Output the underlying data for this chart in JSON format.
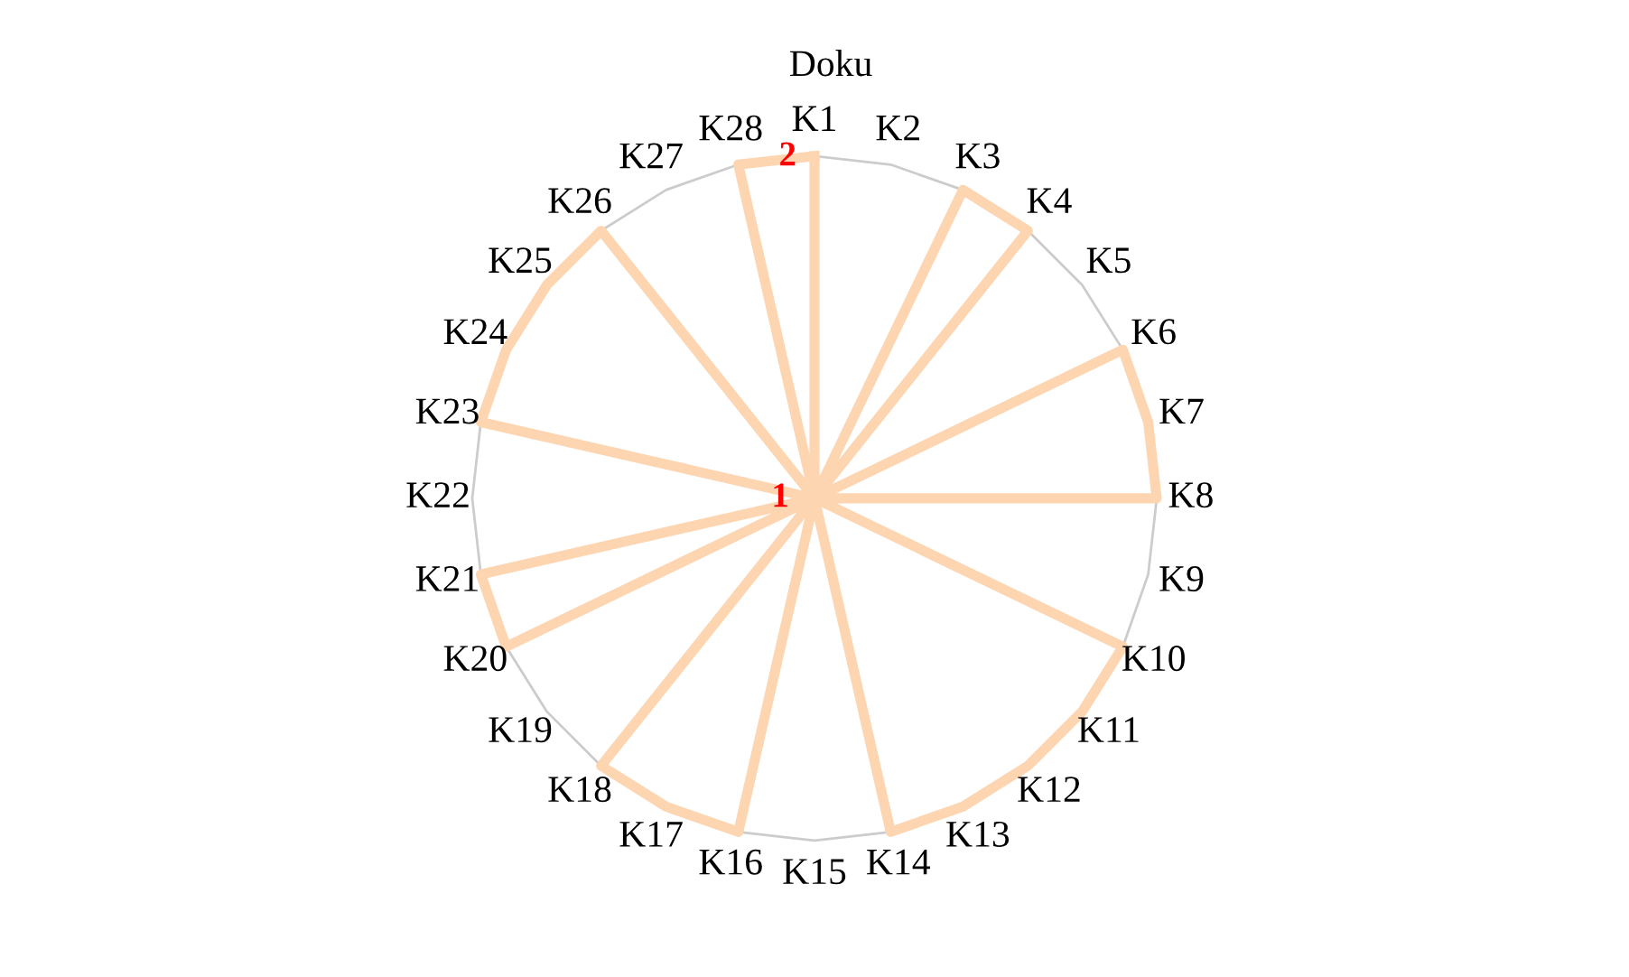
{
  "chart_data": {
    "type": "radar",
    "title": "Doku",
    "categories": [
      "K1",
      "K2",
      "K3",
      "K4",
      "K5",
      "K6",
      "K7",
      "K8",
      "K9",
      "K10",
      "K11",
      "K12",
      "K13",
      "K14",
      "K15",
      "K16",
      "K17",
      "K18",
      "K19",
      "K20",
      "K21",
      "K22",
      "K23",
      "K24",
      "K25",
      "K26",
      "K27",
      "K28"
    ],
    "series": [
      {
        "color": "#fdd5b1",
        "values": [
          2,
          1,
          2,
          2,
          1,
          2,
          2,
          2,
          1,
          2,
          2,
          2,
          2,
          2,
          1,
          2,
          2,
          2,
          1,
          2,
          2,
          1,
          2,
          2,
          2,
          2,
          1,
          2
        ]
      }
    ],
    "ylim": [
      1,
      2
    ],
    "yticks": [
      1,
      2
    ],
    "grid": "y",
    "legend": false
  }
}
